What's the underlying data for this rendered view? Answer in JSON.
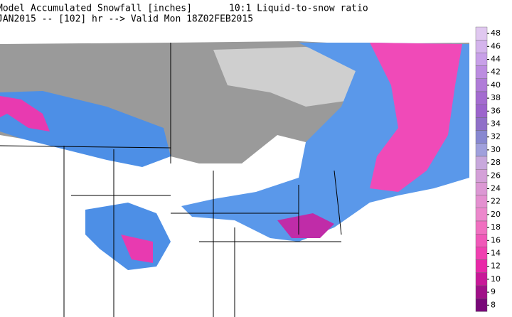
{
  "header": {
    "title": "Model Accumulated Snowfall [inches]",
    "ratio": "10:1 Liquid-to-snow ratio",
    "valid": "JAN2015 -- [102] hr --> Valid Mon 18Z02FEB2015"
  },
  "colorbar": {
    "ticks": [
      48,
      46,
      44,
      42,
      40,
      38,
      36,
      34,
      32,
      30,
      28,
      26,
      24,
      22,
      20,
      18,
      16,
      14,
      12,
      10,
      9,
      8
    ],
    "colors": [
      "#e0c8f0",
      "#d4b4ec",
      "#c8a0e8",
      "#bc8ce0",
      "#b07cd8",
      "#a46cd0",
      "#9c64cc",
      "#9070c8",
      "#8888d0",
      "#a0a0dc",
      "#c8a8dc",
      "#d4a0d8",
      "#dc98d4",
      "#e490d0",
      "#ec88cc",
      "#f070c0",
      "#f058b8",
      "#f040b0",
      "#e828a8",
      "#c81898",
      "#a01088",
      "#780878"
    ]
  }
}
